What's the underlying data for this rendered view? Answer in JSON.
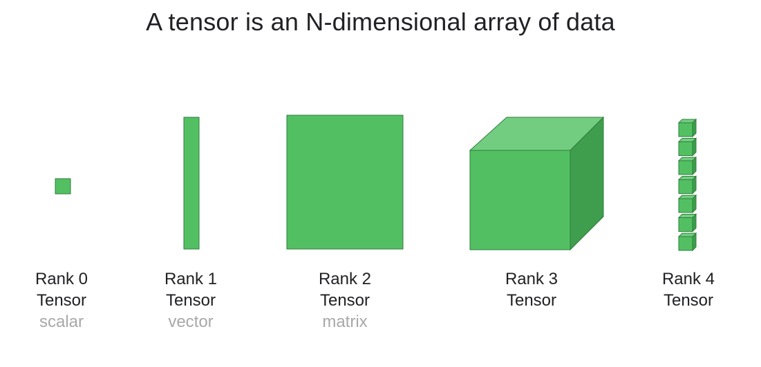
{
  "title": "A tensor is an N-dimensional array of data",
  "colors": {
    "face": "#52c062",
    "top_face": "#72cd80",
    "side_face": "#3f9e4d",
    "stroke": "#2f7c3c",
    "label": "#202124",
    "alias": "#a8a8a8"
  },
  "tensors": [
    {
      "rank_label": "Rank 0",
      "kind_label": "Tensor",
      "alias": "scalar",
      "shape": "square"
    },
    {
      "rank_label": "Rank 1",
      "kind_label": "Tensor",
      "alias": "vector",
      "shape": "bar"
    },
    {
      "rank_label": "Rank 2",
      "kind_label": "Tensor",
      "alias": "matrix",
      "shape": "plane"
    },
    {
      "rank_label": "Rank 3",
      "kind_label": "Tensor",
      "shape": "cube"
    },
    {
      "rank_label": "Rank 4",
      "kind_label": "Tensor",
      "shape": "stack-of-cubes",
      "stack_count": 7
    }
  ]
}
